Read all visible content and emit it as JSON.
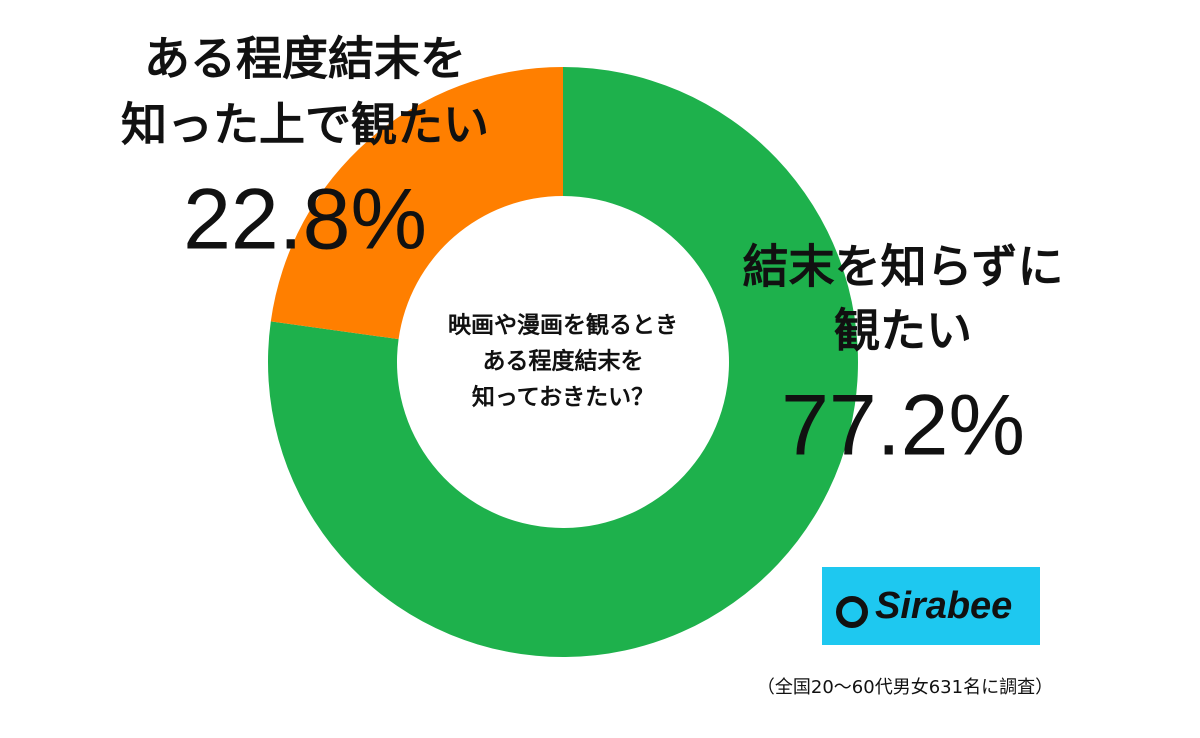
{
  "chart_data": {
    "type": "donut",
    "categories": [
      [
        "結末を知らずに",
        "観たい"
      ],
      [
        "ある程度結末を",
        "知った上で観たい"
      ]
    ],
    "values": [
      77.2,
      22.8
    ],
    "value_labels": [
      "77.2%",
      "22.8%"
    ],
    "colors": [
      "#1eb14c",
      "#ff7f00"
    ],
    "center_text": [
      "映画や漫画を観るとき",
      "ある程度結末を",
      "知っておきたい？"
    ]
  },
  "logo": "Sirabee",
  "note": "（全国20〜60代男女631名に調査）"
}
